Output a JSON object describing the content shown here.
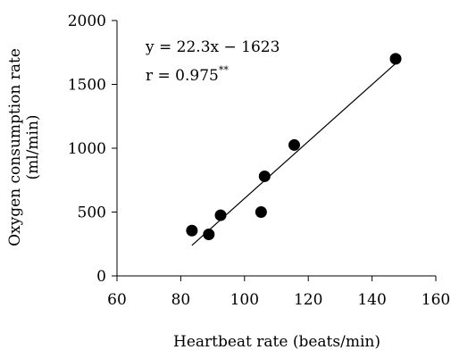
{
  "chart_data": {
    "type": "scatter",
    "title": "",
    "xlabel": "Heartbeat rate  (beats/min)",
    "ylabel_line1": "Oxygen consumption rate",
    "ylabel_line2": "(ml/min)",
    "xlim": [
      60,
      160
    ],
    "ylim": [
      0,
      2000
    ],
    "xticks": [
      60,
      80,
      100,
      120,
      140,
      160
    ],
    "yticks": [
      0,
      500,
      1000,
      1500,
      2000
    ],
    "grid": false,
    "legend": "none",
    "series": [
      {
        "points": [
          {
            "x": 83.5,
            "y": 355
          },
          {
            "x": 88.8,
            "y": 325
          },
          {
            "x": 92.5,
            "y": 475
          },
          {
            "x": 105.2,
            "y": 500
          },
          {
            "x": 106.3,
            "y": 780
          },
          {
            "x": 115.6,
            "y": 1025
          },
          {
            "x": 147.4,
            "y": 1700
          }
        ],
        "color": "#000000"
      }
    ],
    "fit_line": {
      "slope": 22.3,
      "intercept": -1623,
      "x_start": 83.5,
      "x_end": 148.5,
      "color": "#000000"
    },
    "annotations": {
      "equation": "y = 22.3x − 1623",
      "r_text": "r = 0.975",
      "r_superscript": "**"
    }
  }
}
